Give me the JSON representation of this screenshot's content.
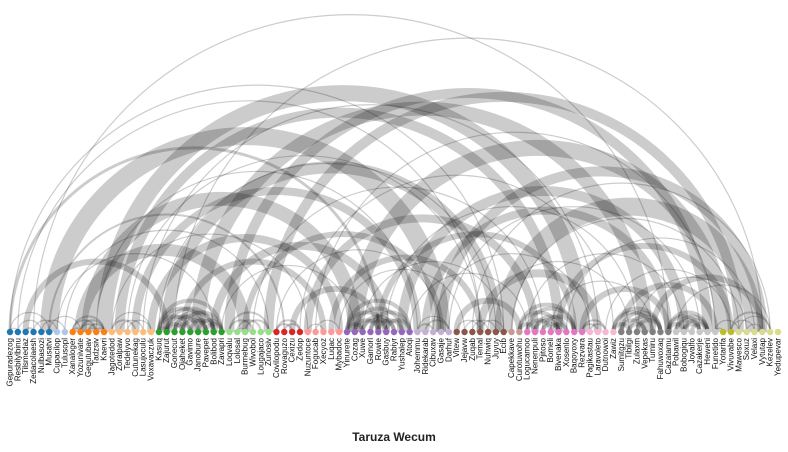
{
  "chart_data": {
    "type": "arc-diagram",
    "xlabel": "Taruza Wecum",
    "groups": [
      {
        "color": "#1f77b4",
        "nodes": [
          "Gepuradezog",
          "Resbilylbinu",
          "Tilsmedaz",
          "Zedacolaesh",
          "Nulbasozi",
          "Musatvi"
        ]
      },
      {
        "color": "#aec7e8",
        "nodes": [
          "Cupacilop",
          "Tulusopl"
        ]
      },
      {
        "color": "#ff7f0e",
        "nodes": [
          "Xanaloger",
          "Yozunivate",
          "Gegutubav",
          "Tadzsiv",
          "Kaevri"
        ]
      },
      {
        "color": "#ffbb78",
        "nodes": [
          "Jagotedod",
          "Zoralpaw",
          "Tedelyvo",
          "Cutunekag",
          "Lasujoculu",
          "Voxavaczuk"
        ]
      },
      {
        "color": "#2ca02c",
        "nodes": [
          "Kasuq",
          "Zajurut",
          "Gonecut",
          "Ojaheket",
          "Gavimo",
          "Janobure",
          "Pavepet",
          "Bolibod",
          "Zavapri"
        ]
      },
      {
        "color": "#98df8a",
        "nodes": [
          "Loqvalu",
          "Lolosal",
          "Burmebug",
          "Wivobol",
          "Lougajaco",
          "Zunosiv"
        ]
      },
      {
        "color": "#d62728",
        "nodes": [
          "Covilopodu",
          "Rovaguzo",
          "Cexizu",
          "Zedop"
        ]
      },
      {
        "color": "#ff9896",
        "nodes": [
          "Nuzuntoce",
          "Fogucab",
          "Xecyoz",
          "Luqac",
          "Mybadoc"
        ]
      },
      {
        "color": "#9467bd",
        "nodes": [
          "Yinurete",
          "Cozag",
          "Xuwe",
          "Gamorl",
          "Rowie",
          "Gasbuy",
          "Rabiyr",
          "Yushalep",
          "Atoqi"
        ]
      },
      {
        "color": "#c5b0d5",
        "nodes": [
          "Johemmu",
          "Ridekarab",
          "Cibuxav",
          "Gasaje",
          "Darhuf"
        ]
      },
      {
        "color": "#8c564b",
        "nodes": [
          "Vitew",
          "Jejavw",
          "Zuqab",
          "Temal",
          "Nuhwiq",
          "Juyuy",
          "Ecib"
        ]
      },
      {
        "color": "#c49c94",
        "nodes": [
          "Capekkave",
          "Curotuwohu"
        ]
      },
      {
        "color": "#e377c2",
        "nodes": [
          "Logucamoo",
          "Nenenpuli",
          "Pjitoso",
          "Bomeli",
          "Bivenaka",
          "Xosenlo",
          "Baqoyoxy",
          "Rezvara"
        ]
      },
      {
        "color": "#f7b6d2",
        "nodes": [
          "Pagikastau",
          "Laravoleto",
          "Dutnowoi",
          "Zawiz"
        ]
      },
      {
        "color": "#7f7f7f",
        "nodes": [
          "Sumitgzu",
          "Tibilgi",
          "Zulaxm",
          "Vepekas",
          "Tumiru",
          "Fahuwoxaq",
          "Cazatamu"
        ]
      },
      {
        "color": "#c7c7c7",
        "nodes": [
          "Pobawil",
          "Bobogiqu",
          "Jovalfo",
          "Cazakerje",
          "Heweni",
          "Funetido"
        ]
      },
      {
        "color": "#bcbd22",
        "nodes": [
          "Yotarifa",
          "Vivuvabe"
        ]
      },
      {
        "color": "#dbdb8d",
        "nodes": [
          "Mawesco",
          "Soxuz",
          "Velaxi",
          "Vytutap",
          "Kezelev",
          "Yedupevar"
        ]
      }
    ],
    "links": [
      [
        0,
        1,
        1
      ],
      [
        0,
        5,
        1
      ],
      [
        1,
        4,
        1
      ],
      [
        2,
        3,
        2
      ],
      [
        3,
        6,
        1
      ],
      [
        4,
        7,
        1
      ],
      [
        5,
        9,
        1
      ],
      [
        0,
        47,
        3
      ],
      [
        2,
        20,
        6
      ],
      [
        5,
        35,
        2
      ],
      [
        1,
        60,
        1
      ],
      [
        8,
        9,
        2
      ],
      [
        8,
        12,
        2
      ],
      [
        9,
        11,
        2
      ],
      [
        10,
        12,
        2
      ],
      [
        9,
        12,
        2
      ],
      [
        8,
        11,
        2
      ],
      [
        10,
        11,
        2
      ],
      [
        11,
        12,
        2
      ],
      [
        13,
        16,
        2
      ],
      [
        14,
        17,
        1
      ],
      [
        15,
        18,
        1
      ],
      [
        13,
        18,
        1
      ],
      [
        19,
        20,
        4
      ],
      [
        19,
        23,
        4
      ],
      [
        19,
        25,
        4
      ],
      [
        20,
        22,
        4
      ],
      [
        20,
        24,
        4
      ],
      [
        21,
        23,
        4
      ],
      [
        21,
        25,
        4
      ],
      [
        21,
        26,
        4
      ],
      [
        22,
        25,
        4
      ],
      [
        22,
        27,
        4
      ],
      [
        23,
        26,
        4
      ],
      [
        24,
        27,
        4
      ],
      [
        25,
        27,
        4
      ],
      [
        19,
        27,
        4
      ],
      [
        20,
        26,
        4
      ],
      [
        28,
        31,
        2
      ],
      [
        29,
        32,
        2
      ],
      [
        30,
        33,
        2
      ],
      [
        28,
        33,
        2
      ],
      [
        29,
        30,
        1
      ],
      [
        34,
        36,
        2
      ],
      [
        35,
        37,
        2
      ],
      [
        34,
        37,
        2
      ],
      [
        38,
        40,
        1
      ],
      [
        39,
        42,
        1
      ],
      [
        43,
        45,
        4
      ],
      [
        43,
        48,
        4
      ],
      [
        44,
        47,
        4
      ],
      [
        44,
        50,
        4
      ],
      [
        45,
        49,
        4
      ],
      [
        46,
        51,
        4
      ],
      [
        47,
        50,
        4
      ],
      [
        48,
        51,
        4
      ],
      [
        43,
        51,
        4
      ],
      [
        45,
        48,
        4
      ],
      [
        46,
        49,
        4
      ],
      [
        52,
        54,
        2
      ],
      [
        53,
        56,
        2
      ],
      [
        52,
        56,
        1
      ],
      [
        57,
        60,
        1
      ],
      [
        58,
        61,
        1
      ],
      [
        59,
        62,
        1
      ],
      [
        60,
        63,
        1
      ],
      [
        65,
        67,
        4
      ],
      [
        65,
        70,
        4
      ],
      [
        66,
        69,
        4
      ],
      [
        66,
        72,
        4
      ],
      [
        67,
        71,
        4
      ],
      [
        68,
        72,
        4
      ],
      [
        69,
        71,
        4
      ],
      [
        65,
        72,
        4
      ],
      [
        67,
        70,
        4
      ],
      [
        68,
        70,
        4
      ],
      [
        73,
        75,
        2
      ],
      [
        74,
        76,
        2
      ],
      [
        73,
        76,
        2
      ],
      [
        77,
        79,
        4
      ],
      [
        77,
        82,
        4
      ],
      [
        78,
        81,
        4
      ],
      [
        78,
        83,
        4
      ],
      [
        79,
        83,
        4
      ],
      [
        80,
        83,
        4
      ],
      [
        77,
        83,
        4
      ],
      [
        79,
        81,
        4
      ],
      [
        84,
        86,
        4
      ],
      [
        84,
        89,
        4
      ],
      [
        85,
        88,
        4
      ],
      [
        85,
        89,
        4
      ],
      [
        86,
        89,
        4
      ],
      [
        87,
        89,
        4
      ],
      [
        84,
        88,
        4
      ],
      [
        86,
        88,
        4
      ],
      [
        90,
        91,
        1
      ],
      [
        90,
        93,
        1
      ],
      [
        92,
        95,
        1
      ],
      [
        93,
        97,
        1
      ],
      [
        94,
        96,
        1
      ],
      [
        92,
        97,
        2
      ],
      [
        5,
        55,
        18
      ],
      [
        9,
        30,
        12
      ],
      [
        10,
        44,
        14
      ],
      [
        12,
        73,
        16
      ],
      [
        14,
        70,
        10
      ],
      [
        16,
        52,
        8
      ],
      [
        18,
        42,
        8
      ],
      [
        20,
        62,
        12
      ],
      [
        22,
        40,
        6
      ],
      [
        24,
        81,
        14
      ],
      [
        26,
        48,
        8
      ],
      [
        28,
        89,
        10
      ],
      [
        30,
        55,
        6
      ],
      [
        33,
        93,
        10
      ],
      [
        36,
        47,
        6
      ],
      [
        38,
        67,
        8
      ],
      [
        41,
        60,
        6
      ],
      [
        44,
        91,
        16
      ],
      [
        47,
        72,
        6
      ],
      [
        50,
        86,
        10
      ],
      [
        53,
        84,
        8
      ],
      [
        55,
        96,
        10
      ],
      [
        57,
        65,
        6
      ],
      [
        60,
        75,
        8
      ],
      [
        63,
        95,
        18
      ],
      [
        70,
        92,
        6
      ],
      [
        73,
        84,
        6
      ],
      [
        78,
        90,
        6
      ],
      [
        82,
        96,
        6
      ],
      [
        0,
        63,
        1
      ],
      [
        3,
        84,
        1
      ],
      [
        7,
        33,
        1
      ],
      [
        11,
        52,
        1
      ],
      [
        15,
        60,
        1
      ],
      [
        17,
        75,
        1
      ],
      [
        21,
        96,
        1
      ],
      [
        27,
        44,
        1
      ],
      [
        31,
        68,
        1
      ],
      [
        34,
        55,
        1
      ],
      [
        37,
        77,
        1
      ],
      [
        39,
        90,
        1
      ],
      [
        42,
        58,
        1
      ],
      [
        45,
        63,
        1
      ],
      [
        48,
        80,
        1
      ],
      [
        51,
        66,
        1
      ],
      [
        54,
        74,
        1
      ],
      [
        56,
        88,
        1
      ],
      [
        59,
        97,
        1
      ],
      [
        61,
        79,
        1
      ],
      [
        64,
        93,
        1
      ],
      [
        66,
        86,
        1
      ],
      [
        69,
        82,
        1
      ],
      [
        71,
        95,
        1
      ],
      [
        76,
        92,
        1
      ],
      [
        80,
        94,
        1
      ],
      [
        85,
        97,
        1
      ],
      [
        6,
        26,
        1
      ],
      [
        13,
        38,
        1
      ],
      [
        19,
        62,
        1
      ]
    ]
  }
}
